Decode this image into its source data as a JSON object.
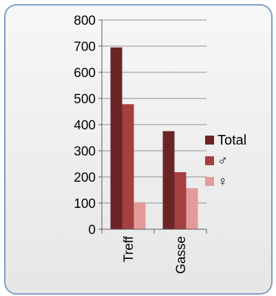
{
  "chart_data": {
    "type": "bar",
    "categories": [
      "Treff",
      "Gasse"
    ],
    "series": [
      {
        "name": "Total",
        "color": "#6b2426",
        "values": [
          695,
          375
        ]
      },
      {
        "name": "♂",
        "color": "#a53f40",
        "values": [
          478,
          218
        ]
      },
      {
        "name": "♀",
        "color": "#e39a9b",
        "values": [
          103,
          157
        ]
      }
    ],
    "ylim": [
      0,
      800
    ],
    "yticks": [
      0,
      100,
      200,
      300,
      400,
      500,
      600,
      700,
      800
    ],
    "grid": true,
    "legend": "right",
    "xlabel": "",
    "ylabel": ""
  }
}
